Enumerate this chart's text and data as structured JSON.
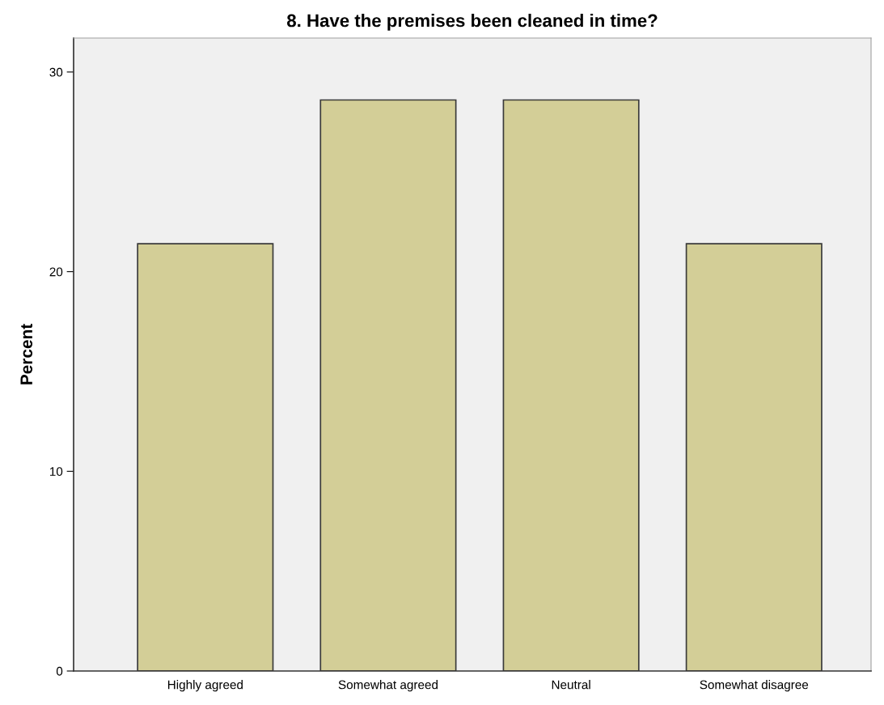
{
  "chart_data": {
    "type": "bar",
    "title": "8. Have the premises been cleaned in time?",
    "ylabel": "Percent",
    "categories": [
      "Highly agreed",
      "Somewhat agreed",
      "Neutral",
      "Somewhat disagree"
    ],
    "values": [
      21.4,
      28.6,
      28.6,
      21.4
    ],
    "color": "#d3ce97",
    "ylim": [
      0,
      31.7
    ],
    "yticks": [
      0,
      10,
      20,
      30
    ],
    "grid": false
  }
}
